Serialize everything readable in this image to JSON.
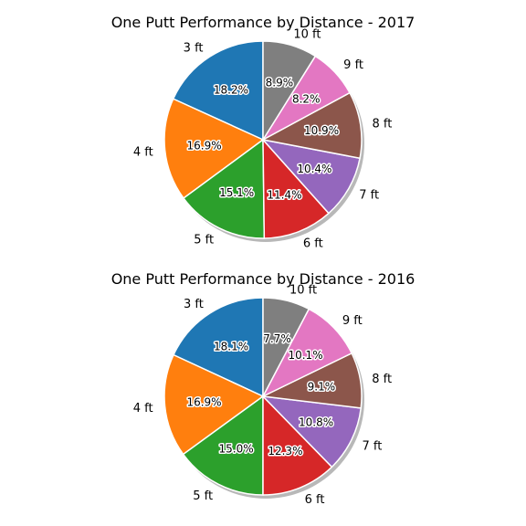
{
  "chart_data": [
    {
      "type": "pie",
      "title": "One Putt Performance by Distance - 2017",
      "categories": [
        "3 ft",
        "4 ft",
        "5 ft",
        "6 ft",
        "7 ft",
        "8 ft",
        "9 ft",
        "10 ft"
      ],
      "values": [
        18.2,
        16.9,
        15.1,
        11.4,
        10.4,
        10.9,
        8.2,
        8.9
      ],
      "value_labels": [
        "18.2%",
        "16.9%",
        "15.1%",
        "11.4%",
        "10.4%",
        "10.9%",
        "8.2%",
        "8.9%"
      ],
      "colors": [
        "#1f77b4",
        "#ff7f0e",
        "#2ca02c",
        "#d62728",
        "#9467bd",
        "#8c564b",
        "#e377c2",
        "#7f7f7f"
      ],
      "shadow": true
    },
    {
      "type": "pie",
      "title": "One Putt Performance by Distance - 2016",
      "categories": [
        "3 ft",
        "4 ft",
        "5 ft",
        "6 ft",
        "7 ft",
        "8 ft",
        "9 ft",
        "10 ft"
      ],
      "values": [
        18.1,
        16.9,
        15.0,
        12.3,
        10.8,
        9.1,
        10.1,
        7.7
      ],
      "value_labels": [
        "18.1%",
        "16.9%",
        "15.0%",
        "12.3%",
        "10.8%",
        "9.1%",
        "10.1%",
        "7.7%"
      ],
      "colors": [
        "#1f77b4",
        "#ff7f0e",
        "#2ca02c",
        "#d62728",
        "#9467bd",
        "#8c564b",
        "#e377c2",
        "#7f7f7f"
      ],
      "shadow": true
    }
  ]
}
